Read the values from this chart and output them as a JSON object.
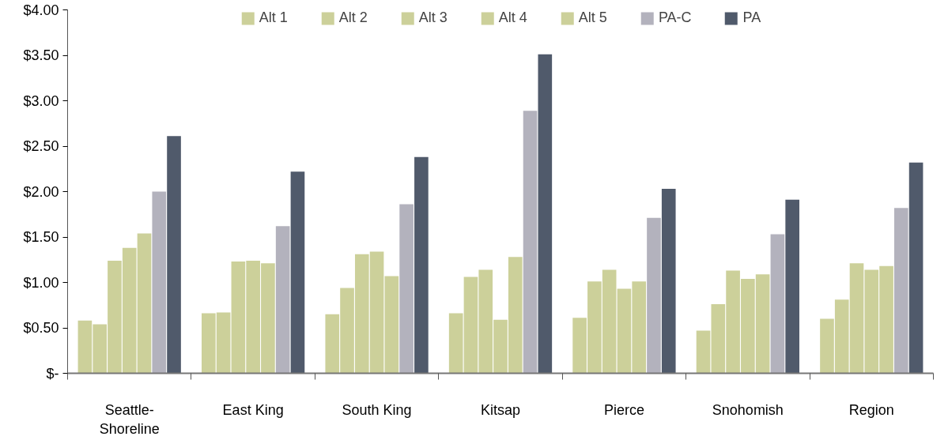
{
  "chart_data": {
    "type": "bar",
    "categories": [
      "Seattle-Shoreline",
      "East King",
      "South King",
      "Kitsap",
      "Pierce",
      "Snohomish",
      "Region"
    ],
    "series": [
      {
        "name": "Alt 1",
        "color": "#ccd09a",
        "values": [
          0.58,
          0.66,
          0.65,
          0.66,
          0.61,
          0.47,
          0.6
        ]
      },
      {
        "name": "Alt 2",
        "color": "#ccd09a",
        "values": [
          0.54,
          0.67,
          0.94,
          1.06,
          1.01,
          0.76,
          0.81
        ]
      },
      {
        "name": "Alt 3",
        "color": "#ccd09a",
        "values": [
          1.24,
          1.23,
          1.31,
          1.14,
          1.14,
          1.13,
          1.21
        ]
      },
      {
        "name": "Alt 4",
        "color": "#ccd09a",
        "values": [
          1.38,
          1.24,
          1.34,
          0.59,
          0.93,
          1.04,
          1.14
        ]
      },
      {
        "name": "Alt 5",
        "color": "#ccd09a",
        "values": [
          1.54,
          1.21,
          1.07,
          1.28,
          1.01,
          1.09,
          1.18
        ]
      },
      {
        "name": "PA-C",
        "color": "#b3b2bd",
        "values": [
          2.0,
          1.62,
          1.86,
          2.89,
          1.71,
          1.53,
          1.82
        ]
      },
      {
        "name": "PA",
        "color": "#505a6b",
        "values": [
          2.61,
          2.22,
          2.38,
          3.51,
          2.03,
          1.91,
          2.32
        ]
      }
    ],
    "ylim": [
      0,
      4
    ],
    "yticks": [
      {
        "value": 0,
        "label": "$-"
      },
      {
        "value": 0.5,
        "label": "$0.50"
      },
      {
        "value": 1,
        "label": "$1.00"
      },
      {
        "value": 1.5,
        "label": "$1.50"
      },
      {
        "value": 2,
        "label": "$2.00"
      },
      {
        "value": 2.5,
        "label": "$2.50"
      },
      {
        "value": 3,
        "label": "$3.00"
      },
      {
        "value": 3.5,
        "label": "$3.50"
      },
      {
        "value": 4,
        "label": "$4.00"
      }
    ],
    "grid": false,
    "legend": "top"
  }
}
